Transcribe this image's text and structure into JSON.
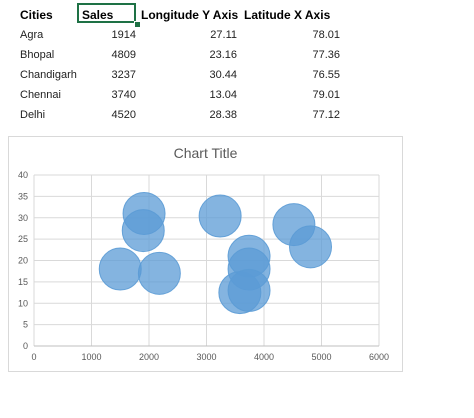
{
  "table": {
    "headers": [
      "Cities",
      "Sales",
      "Longitude Y Axis",
      "Latitude X Axis"
    ],
    "rows": [
      [
        "Agra",
        "1914",
        "27.11",
        "78.01"
      ],
      [
        "Bhopal",
        "4809",
        "23.16",
        "77.36"
      ],
      [
        "Chandigarh",
        "3237",
        "30.44",
        "76.55"
      ],
      [
        "Chennai",
        "3740",
        "13.04",
        "79.01"
      ],
      [
        "Delhi",
        "4520",
        "28.38",
        "77.12"
      ]
    ]
  },
  "colors": {
    "bubble_fill": "#5b9bd5",
    "selection_border": "#1e7145",
    "gridline": "#d9d9d9"
  },
  "chart_data": {
    "type": "scatter",
    "title": "Chart Title",
    "xlim": [
      0,
      6000
    ],
    "ylim": [
      0,
      40
    ],
    "xticks": [
      0,
      1000,
      2000,
      3000,
      4000,
      5000,
      6000
    ],
    "yticks": [
      0,
      5,
      10,
      15,
      20,
      25,
      30,
      35,
      40
    ],
    "grid": true,
    "legend": "none",
    "series": [
      {
        "points": [
          {
            "x": 1914,
            "y": 31
          },
          {
            "x": 1900,
            "y": 27
          },
          {
            "x": 1500,
            "y": 18
          },
          {
            "x": 2180,
            "y": 17
          },
          {
            "x": 3237,
            "y": 30.4
          },
          {
            "x": 4520,
            "y": 28.4
          },
          {
            "x": 4809,
            "y": 23.2
          },
          {
            "x": 3740,
            "y": 21
          },
          {
            "x": 3740,
            "y": 18
          },
          {
            "x": 3580,
            "y": 12.5
          },
          {
            "x": 3740,
            "y": 13
          }
        ]
      }
    ]
  }
}
